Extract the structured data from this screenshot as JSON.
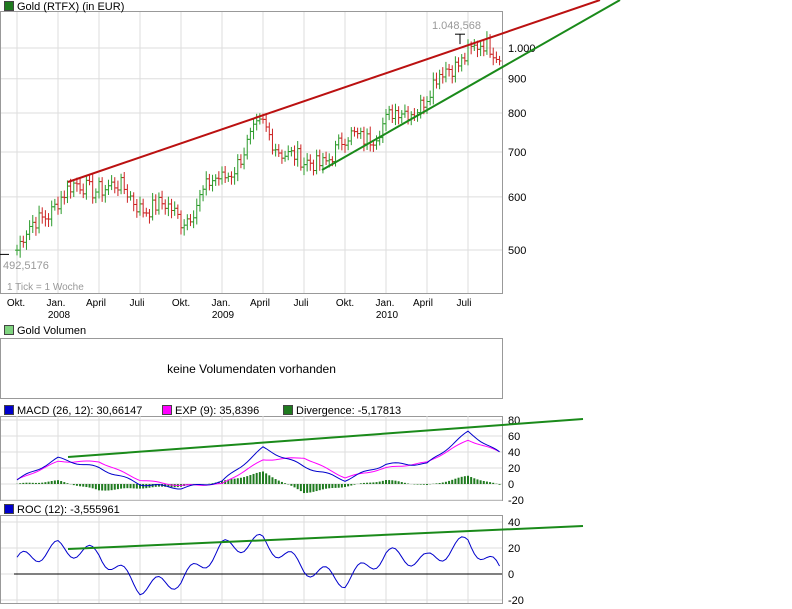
{
  "main": {
    "legend": "Gold (RTFX) (in EUR)",
    "legend_color": "#1f7a1f",
    "tick_note": "1 Tick = 1 Woche",
    "high_label": "1.048,568",
    "low_label": "492,5176",
    "y_ticks": [
      "1.000",
      "900",
      "800",
      "700",
      "600",
      "500"
    ],
    "x_labels": [
      "Okt.",
      "Jan.",
      "April",
      "Juli",
      "Okt.",
      "Jan.",
      "April",
      "Juli",
      "Okt.",
      "Jan.",
      "April",
      "Juli"
    ],
    "year_labels": [
      "2008",
      "2009",
      "2010"
    ]
  },
  "volume": {
    "legend": "Gold Volumen",
    "legend_color": "#7fd37f",
    "message": "keine Volumendaten vorhanden"
  },
  "macd": {
    "legend_macd": "MACD (26, 12): 30,66147",
    "legend_exp": "EXP (9): 35,8396",
    "legend_div": "Divergence: -5,17813",
    "color_macd": "#0000cc",
    "color_exp": "#ff00ff",
    "color_div": "#1f7a1f",
    "y_ticks": [
      "80",
      "60",
      "40",
      "20",
      "0",
      "-20"
    ]
  },
  "roc": {
    "legend": "ROC (12): -3,555961",
    "color": "#0000cc",
    "y_ticks": [
      "40",
      "20",
      "0",
      "-20"
    ]
  },
  "colors": {
    "up": "#2a9a2a",
    "down": "#cc2222",
    "trend_up": "#1a8a1a",
    "trend_res": "#bb1111",
    "grid": "#dddddd"
  },
  "chart_data": [
    {
      "type": "candlestick",
      "title": "Gold (RTFX) (in EUR)",
      "x": [
        "2007-10",
        "2008-01",
        "2008-04",
        "2008-07",
        "2008-10",
        "2009-01",
        "2009-04",
        "2009-07",
        "2009-10",
        "2010-01",
        "2010-04",
        "2010-07",
        "2010-08"
      ],
      "close": [
        500,
        600,
        630,
        590,
        560,
        640,
        760,
        660,
        720,
        770,
        850,
        1000,
        975
      ],
      "high": 1048.568,
      "low": 492.5176,
      "ylim": [
        450,
        1100
      ],
      "log_scale": true,
      "trendlines": [
        "resistance (red)",
        "support (green)"
      ]
    },
    {
      "type": "line",
      "title": "MACD (26, 12)",
      "series": [
        {
          "name": "MACD (26, 12)",
          "values": [
            5,
            32,
            20,
            0,
            -5,
            3,
            45,
            22,
            5,
            25,
            25,
            65,
            31
          ]
        },
        {
          "name": "EXP (9)",
          "values": [
            5,
            28,
            28,
            5,
            -2,
            0,
            30,
            33,
            8,
            20,
            27,
            55,
            36
          ]
        },
        {
          "name": "Divergence",
          "values": [
            0,
            4,
            -8,
            -5,
            -3,
            3,
            15,
            -11,
            -3,
            5,
            -2,
            10,
            -5
          ]
        }
      ],
      "ylim": [
        -20,
        80
      ]
    },
    {
      "type": "line",
      "title": "ROC (12)",
      "series": [
        {
          "name": "ROC (12)",
          "values": [
            10,
            20,
            15,
            -10,
            -5,
            20,
            25,
            5,
            -5,
            15,
            10,
            25,
            -4
          ]
        }
      ],
      "ylim": [
        -20,
        40
      ]
    }
  ]
}
